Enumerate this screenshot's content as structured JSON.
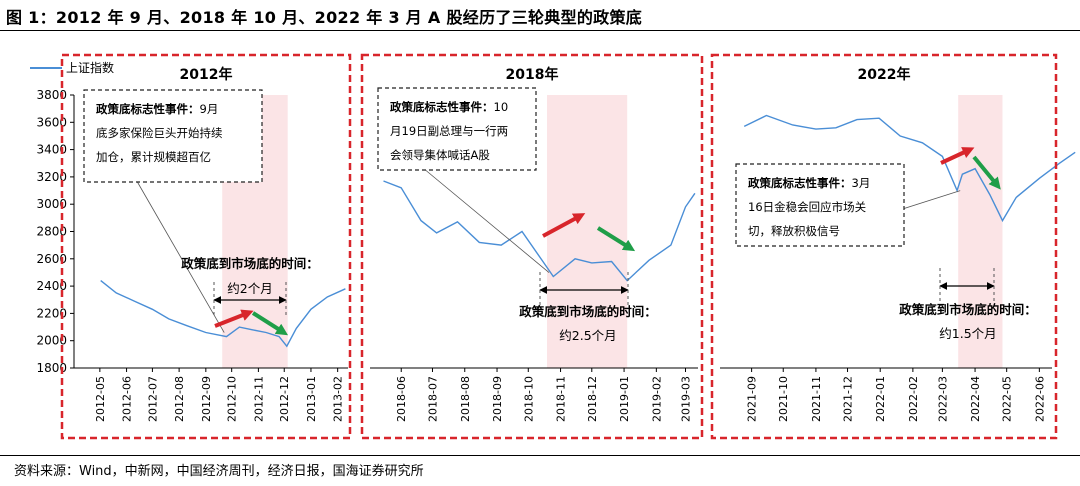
{
  "figure": {
    "title": "图 1：2012 年 9 月、2018 年 10 月、2022 年 3 月 A 股经历了三轮典型的政策底",
    "source": "资料来源：Wind，中新网，中国经济周刊，经济日报，国海证券研究所"
  },
  "legend": {
    "series_name": "上证指数"
  },
  "colors": {
    "line": "#4a8ed6",
    "shade": "#fbe4e6",
    "frame": "#d8252b",
    "arrow_up": "#d8252b",
    "arrow_down": "#1f9e48"
  },
  "chart_data": [
    {
      "type": "line",
      "panel_title": "2012年",
      "series": [
        {
          "name": "上证指数",
          "x": [
            "2012-05-02",
            "2012-05-20",
            "2012-06-10",
            "2012-07-01",
            "2012-07-20",
            "2012-08-10",
            "2012-09-01",
            "2012-09-25",
            "2012-10-10",
            "2012-10-25",
            "2012-11-10",
            "2012-11-25",
            "2012-12-04",
            "2012-12-15",
            "2013-01-01",
            "2013-01-20",
            "2013-02-10"
          ],
          "values": [
            2440,
            2350,
            2290,
            2230,
            2160,
            2110,
            2060,
            2030,
            2100,
            2080,
            2060,
            2030,
            1960,
            2090,
            2230,
            2320,
            2380
          ]
        }
      ],
      "x_ticks": [
        "2012-05",
        "2012-06",
        "2012-07",
        "2012-08",
        "2012-09",
        "2012-10",
        "2012-11",
        "2012-12",
        "2013-01",
        "2013-02"
      ],
      "y_ticks": [
        1800,
        2000,
        2200,
        2400,
        2600,
        2800,
        3000,
        3200,
        3400,
        3600,
        3800
      ],
      "ylim": [
        1800,
        3800
      ],
      "shaded_range": [
        "2012-09-20",
        "2012-12-05"
      ],
      "callout": {
        "heading": "政策底标志性事件：",
        "lines": [
          "9月",
          "底多家保险巨头开始持续",
          "加仓，累计规模超百亿"
        ]
      },
      "duration_label": "政策底到市场底的时间：",
      "duration_value": "约2个月"
    },
    {
      "type": "line",
      "panel_title": "2018年",
      "series": [
        {
          "name": "上证指数",
          "x": [
            "2018-05-15",
            "2018-06-01",
            "2018-06-20",
            "2018-07-05",
            "2018-07-25",
            "2018-08-15",
            "2018-09-05",
            "2018-09-25",
            "2018-10-15",
            "2018-10-25",
            "2018-11-15",
            "2018-12-01",
            "2018-12-20",
            "2019-01-04",
            "2019-01-25",
            "2019-02-15",
            "2019-03-01",
            "2019-03-10"
          ],
          "values": [
            3170,
            3120,
            2880,
            2790,
            2870,
            2720,
            2700,
            2800,
            2580,
            2470,
            2600,
            2570,
            2580,
            2440,
            2590,
            2700,
            2980,
            3080
          ]
        }
      ],
      "x_ticks": [
        "2018-06",
        "2018-07",
        "2018-08",
        "2018-09",
        "2018-10",
        "2018-11",
        "2018-12",
        "2019-01",
        "2019-02",
        "2019-03"
      ],
      "shaded_range": [
        "2018-10-19",
        "2019-01-04"
      ],
      "callout": {
        "heading": "政策底标志性事件：",
        "lines": [
          "10",
          "月19日副总理与一行两",
          "会领导集体喊话A股"
        ]
      },
      "duration_label": "政策底到市场底的时间：",
      "duration_value": "约2.5个月"
    },
    {
      "type": "line",
      "panel_title": "2022年",
      "series": [
        {
          "name": "上证指数",
          "x": [
            "2021-08-25",
            "2021-09-15",
            "2021-10-10",
            "2021-11-01",
            "2021-11-20",
            "2021-12-10",
            "2021-12-31",
            "2022-01-20",
            "2022-02-10",
            "2022-03-01",
            "2022-03-15",
            "2022-03-20",
            "2022-04-01",
            "2022-04-15",
            "2022-04-27",
            "2022-05-10",
            "2022-06-01",
            "2022-06-20",
            "2022-07-05"
          ],
          "values": [
            3570,
            3650,
            3580,
            3550,
            3560,
            3620,
            3630,
            3500,
            3450,
            3350,
            3100,
            3220,
            3260,
            3070,
            2880,
            3050,
            3190,
            3300,
            3380
          ]
        }
      ],
      "x_ticks": [
        "2021-09",
        "2021-10",
        "2021-11",
        "2021-12",
        "2022-01",
        "2022-02",
        "2022-03",
        "2022-04",
        "2022-05",
        "2022-06"
      ],
      "shaded_range": [
        "2022-03-16",
        "2022-04-27"
      ],
      "callout": {
        "heading": "政策底标志性事件：",
        "lines": [
          "3月",
          "16日金稳会回应市场关",
          "切，释放积极信号"
        ]
      },
      "duration_label": "政策底到市场底的时间：",
      "duration_value": "约1.5个月"
    }
  ]
}
